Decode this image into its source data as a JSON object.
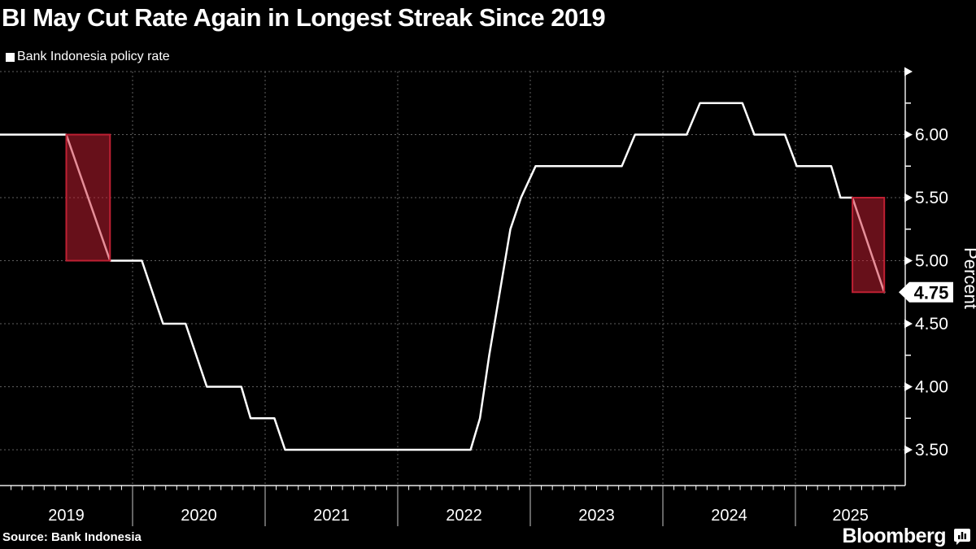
{
  "header": {
    "title": "BI May Cut Rate Again in Longest Streak Since 2019",
    "legend_label": "Bank Indonesia policy rate"
  },
  "footer": {
    "source": "Source: Bank Indonesia",
    "brand": "Bloomberg"
  },
  "colors": {
    "background": "#000000",
    "line": "#ffffff",
    "grid": "#5f5f5f",
    "axis": "#e8e8e8",
    "tick": "#ffffff",
    "year_separator": "#c8c8c8",
    "highlight_fill": "rgba(205,32,52,0.5)",
    "highlight_border": "#bf2033",
    "tag_bg": "#ffffff",
    "tag_text": "#000000"
  },
  "chart_data": {
    "type": "line",
    "title": "BI May Cut Rate Again in Longest Streak Since 2019",
    "ylabel": "Percent",
    "unit": "percent",
    "grid": true,
    "legend_position": "top-left",
    "series": [
      {
        "name": "Bank Indonesia policy rate",
        "points": [
          [
            2019.0,
            6.0
          ],
          [
            2019.5,
            6.0
          ],
          [
            2019.83,
            5.0
          ],
          [
            2020.07,
            5.0
          ],
          [
            2020.23,
            4.5
          ],
          [
            2020.4,
            4.5
          ],
          [
            2020.56,
            4.0
          ],
          [
            2020.82,
            4.0
          ],
          [
            2020.89,
            3.75
          ],
          [
            2021.07,
            3.75
          ],
          [
            2021.15,
            3.5
          ],
          [
            2022.55,
            3.5
          ],
          [
            2022.62,
            3.75
          ],
          [
            2022.69,
            4.25
          ],
          [
            2022.77,
            4.75
          ],
          [
            2022.85,
            5.25
          ],
          [
            2022.93,
            5.5
          ],
          [
            2023.04,
            5.75
          ],
          [
            2023.69,
            5.75
          ],
          [
            2023.79,
            6.0
          ],
          [
            2024.18,
            6.0
          ],
          [
            2024.28,
            6.25
          ],
          [
            2024.6,
            6.25
          ],
          [
            2024.69,
            6.0
          ],
          [
            2024.92,
            6.0
          ],
          [
            2025.01,
            5.75
          ],
          [
            2025.27,
            5.75
          ],
          [
            2025.34,
            5.5
          ],
          [
            2025.43,
            5.5
          ],
          [
            2025.67,
            4.75
          ]
        ]
      }
    ],
    "y_axis": {
      "range": [
        3.2,
        6.5
      ],
      "major_ticks": [
        {
          "value": 6.5,
          "label": ""
        },
        {
          "value": 6.0,
          "label": "6.00"
        },
        {
          "value": 5.5,
          "label": "5.50"
        },
        {
          "value": 5.0,
          "label": "5.00"
        },
        {
          "value": 4.5,
          "label": "4.50"
        },
        {
          "value": 4.0,
          "label": "4.00"
        },
        {
          "value": 3.5,
          "label": "3.50"
        }
      ],
      "minor_ticks": [
        6.25,
        5.75,
        5.25,
        4.75,
        4.25,
        3.75
      ]
    },
    "x_axis": {
      "start": 2019.0,
      "end": 2025.83,
      "separator_years": [
        2020,
        2021,
        2022,
        2023,
        2024,
        2025
      ],
      "year_labels": [
        "2019",
        "2020",
        "2021",
        "2022",
        "2023",
        "2024",
        "2025"
      ],
      "minor_tick_months": true
    },
    "highlights": [
      {
        "from_x": 2019.5,
        "to_x": 2019.83,
        "from_value": 6.0,
        "to_value": 5.0
      },
      {
        "from_x": 2025.43,
        "to_x": 2025.67,
        "from_value": 5.5,
        "to_value": 4.75
      }
    ],
    "last_value": {
      "x": 2025.67,
      "value": 4.75,
      "label": "4.75"
    }
  }
}
